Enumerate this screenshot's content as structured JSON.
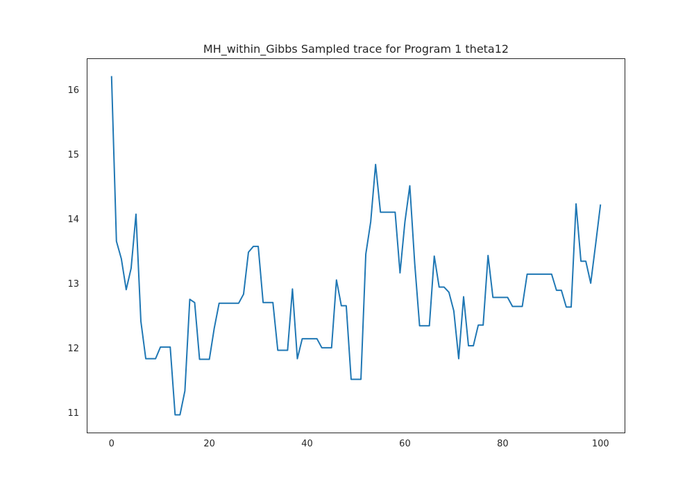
{
  "chart_data": {
    "type": "line",
    "title": "MH_within_Gibbs Sampled trace for Program 1 theta12",
    "xlabel": "",
    "ylabel": "",
    "xlim": [
      -5,
      105
    ],
    "ylim": [
      10.68,
      16.48
    ],
    "x_ticks": [
      0,
      20,
      40,
      60,
      80,
      100
    ],
    "y_ticks": [
      11,
      12,
      13,
      14,
      15,
      16
    ],
    "grid": false,
    "legend": "none",
    "line_color": "#1f77b4",
    "series": [
      {
        "x": [
          0,
          1,
          2,
          3,
          4,
          5,
          6,
          7,
          8,
          9,
          10,
          11,
          12,
          13,
          14,
          15,
          16,
          17,
          18,
          19,
          20,
          21,
          22,
          23,
          24,
          25,
          26,
          27,
          28,
          29,
          30,
          31,
          32,
          33,
          34,
          35,
          36,
          37,
          38,
          39,
          40,
          41,
          42,
          43,
          44,
          45,
          46,
          47,
          48,
          49,
          50,
          51,
          52,
          53,
          54,
          55,
          56,
          57,
          58,
          59,
          60,
          61,
          62,
          63,
          64,
          65,
          66,
          67,
          68,
          69,
          70,
          71,
          72,
          73,
          74,
          75,
          76,
          77,
          78,
          79,
          80,
          81,
          82,
          83,
          84,
          85,
          86,
          87,
          88,
          89,
          90,
          91,
          92,
          93,
          94,
          95,
          96,
          97,
          98,
          99,
          100
        ],
        "values": [
          16.21,
          13.65,
          13.38,
          12.9,
          13.23,
          14.07,
          12.41,
          11.83,
          11.83,
          11.83,
          12.01,
          12.01,
          12.01,
          10.96,
          10.96,
          11.33,
          12.75,
          12.7,
          11.82,
          11.82,
          11.82,
          12.3,
          12.69,
          12.69,
          12.69,
          12.69,
          12.69,
          12.83,
          13.48,
          13.57,
          13.57,
          12.7,
          12.7,
          12.7,
          11.96,
          11.96,
          11.96,
          12.91,
          11.83,
          12.14,
          12.14,
          12.14,
          12.14,
          12.0,
          12.0,
          12.0,
          13.05,
          12.65,
          12.65,
          11.51,
          11.51,
          11.51,
          13.45,
          13.95,
          14.84,
          14.1,
          14.1,
          14.1,
          14.1,
          13.16,
          13.95,
          14.51,
          13.31,
          12.34,
          12.34,
          12.34,
          13.42,
          12.94,
          12.94,
          12.86,
          12.57,
          11.83,
          12.79,
          12.03,
          12.03,
          12.35,
          12.35,
          13.43,
          12.78,
          12.78,
          12.78,
          12.78,
          12.64,
          12.64,
          12.64,
          13.14,
          13.14,
          13.14,
          13.14,
          13.14,
          13.14,
          12.89,
          12.89,
          12.63,
          12.63,
          14.23,
          13.34,
          13.34,
          13.0,
          13.6,
          14.22
        ]
      }
    ]
  }
}
